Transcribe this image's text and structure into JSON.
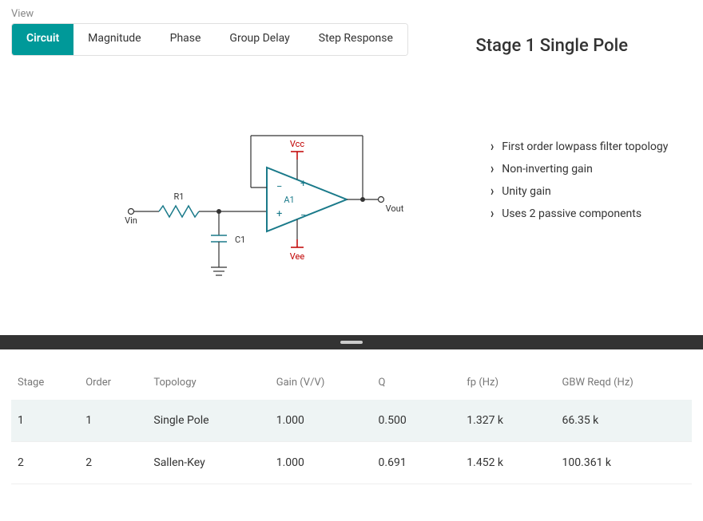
{
  "view_label": "View",
  "tabs": [
    "Circuit",
    "Magnitude",
    "Phase",
    "Group Delay",
    "Step Response"
  ],
  "active_tab": 0,
  "title": "Stage 1 Single Pole",
  "features": [
    "First order lowpass filter topology",
    "Non-inverting gain",
    "Unity gain",
    "Uses 2 passive components"
  ],
  "circuit": {
    "vin_label": "Vin",
    "vout_label": "Vout",
    "r1_label": "R1",
    "c1_label": "C1",
    "a1_label": "A1",
    "vcc_label": "Vcc",
    "vee_label": "Vee",
    "opamp_color": "#1a7a8a",
    "rail_color": "#c00000",
    "wire_color": "#333333"
  },
  "table": {
    "columns": [
      "Stage",
      "Order",
      "Topology",
      "Gain (V/V)",
      "Q",
      "fp (Hz)",
      "GBW Reqd (Hz)"
    ],
    "col_widths": [
      "10%",
      "10%",
      "18%",
      "15%",
      "13%",
      "14%",
      "20%"
    ],
    "rows": [
      [
        "1",
        "1",
        "Single Pole",
        "1.000",
        "0.500",
        "1.327 k",
        "66.35 k"
      ],
      [
        "2",
        "2",
        "Sallen-Key",
        "1.000",
        "0.691",
        "1.452 k",
        "100.361 k"
      ]
    ],
    "selected_row": 0
  }
}
